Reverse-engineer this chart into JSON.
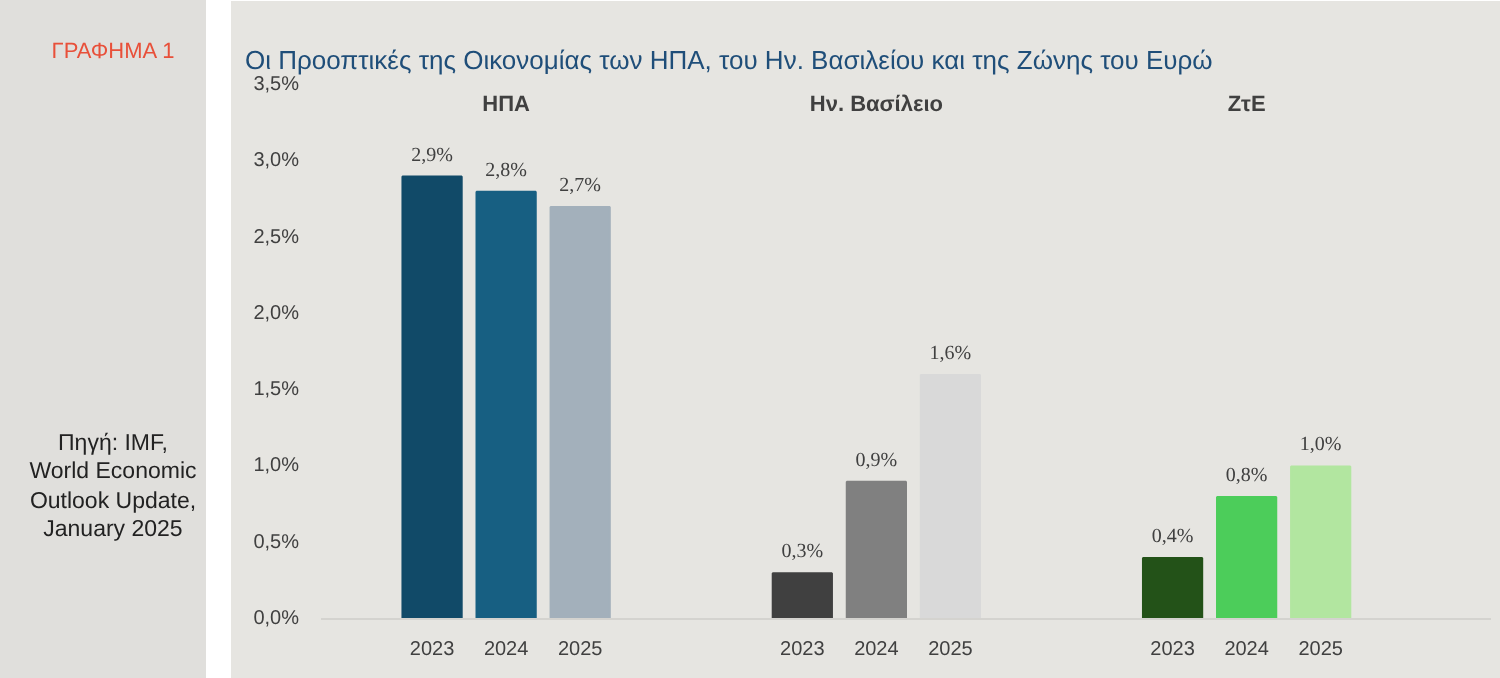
{
  "chart_data": {
    "type": "bar",
    "title": "Οι Προοπτικές της Οικονομίας των ΗΠΑ, του Ην. Βασιλείου και της Ζώνης του Ευρώ",
    "categories": [
      "2023",
      "2024",
      "2025",
      null,
      null,
      "2023",
      "2024",
      "2025",
      null,
      null,
      "2023",
      "2024",
      "2025"
    ],
    "values": [
      2.9,
      2.8,
      2.7,
      null,
      null,
      0.3,
      0.9,
      1.6,
      null,
      null,
      0.4,
      0.8,
      1.0
    ],
    "colors": [
      "#114a68",
      "#175f82",
      "#a3b0bb",
      null,
      null,
      "#404040",
      "#808080",
      "#d9d9d9",
      null,
      null,
      "#235218",
      "#4ccd5a",
      "#b2e6a0"
    ],
    "value_labels": [
      "2,9%",
      "2,8%",
      "2,7%",
      null,
      null,
      "0,3%",
      "0,9%",
      "1,6%",
      null,
      null,
      "0,4%",
      "0,8%",
      "1,0%"
    ],
    "ylim": [
      0,
      3.5
    ],
    "yticks": [
      {
        "value": 0,
        "label": "0,0%"
      },
      {
        "value": 0.5,
        "label": "0,5%"
      },
      {
        "value": 1,
        "label": "1,0%"
      },
      {
        "value": 1.5,
        "label": "1,5%"
      },
      {
        "value": 2,
        "label": "2,0%"
      },
      {
        "value": 2.5,
        "label": "2,5%"
      },
      {
        "value": 3,
        "label": "3,0%"
      },
      {
        "value": 3.5,
        "label": "3,5%"
      }
    ],
    "grid": false,
    "legend": false,
    "annotations": [
      "ΓΡΑΦΗΜΑ 1",
      "Πηγή: IMF,\nWorld Economic\nOutlook Update,\nJanuary 2025",
      "ΗΠΑ",
      "Ην. Βασίλειο",
      "ΖτΕ"
    ]
  }
}
